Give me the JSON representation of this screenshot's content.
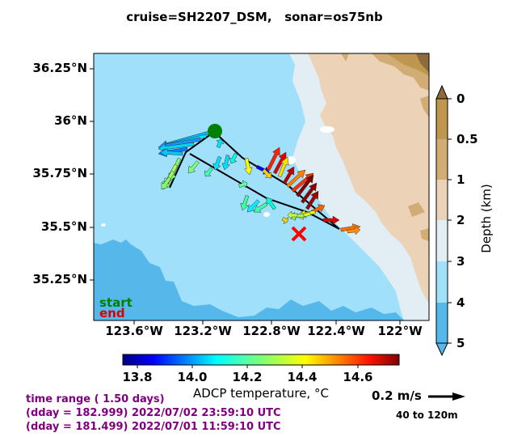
{
  "title": "cruise=SH2207_DSM,   sonar=os75nb",
  "lat_labels": [
    "36.25°N",
    "36°N",
    "35.75°N",
    "35.5°N",
    "35.25°N"
  ],
  "lon_labels": [
    "123.6°W",
    "123.2°W",
    "122.8°W",
    "122.4°W",
    "122°W"
  ],
  "depth_colorbar": {
    "title": "Depth (km)",
    "ticks": [
      "0",
      "0.5",
      "1",
      "2",
      "3",
      "4",
      "5"
    ],
    "colors": [
      "#8c6c3c",
      "#bf9650",
      "#d1ac74",
      "#ecd3b8",
      "#e2eef4",
      "#a0e0fa",
      "#55b7ea"
    ]
  },
  "temp_colorbar": {
    "title": "ADCP temperature, °C",
    "ticks": [
      "13.8",
      "14.0",
      "14.2",
      "14.4",
      "14.6"
    ]
  },
  "legend": {
    "start": "start",
    "end": "end"
  },
  "scale": {
    "label": "0.2 m/s",
    "depth_range": "40 to 120m"
  },
  "info": {
    "time_range": "time range ( 1.50 days)",
    "line_end": "(dday = 182.999) 2022/07/02 23:59:10 UTC",
    "line_start": "(dday = 181.499) 2022/07/01 11:59:10 UTC"
  },
  "colors": {
    "start_marker": "#008000",
    "end_marker": "#ff0000",
    "info_text": "#800080"
  }
}
